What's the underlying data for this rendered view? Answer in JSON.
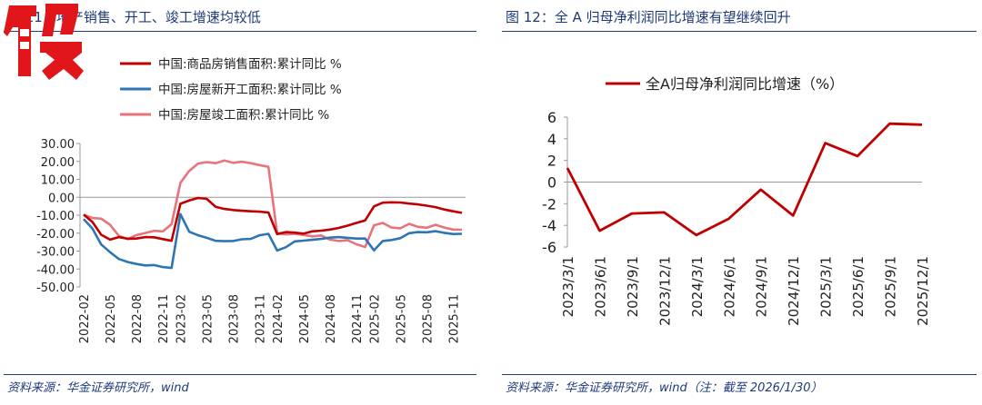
{
  "left": {
    "fig_title": "图 11：地产销售、开工、竣工增速均较低",
    "source": "资料来源：华金证券研究所，wind"
  },
  "right": {
    "fig_title": "图 12：全 A 归母净利润同比增速有望继续回升",
    "source": "资料来源：华金证券研究所，wind（注：截至 2026/1/30）"
  },
  "colors": {
    "navy": "#1f3a7a",
    "red": "#c00000",
    "blue": "#2e75b6",
    "pink": "#e8737a",
    "stamp": "#e0161b"
  },
  "chart_data": [
    {
      "type": "line",
      "title": "",
      "xlabel": "",
      "ylabel": "",
      "ylim": [
        -50,
        30
      ],
      "yticks": [
        30,
        20,
        10,
        0,
        -10,
        -20,
        -30,
        -40,
        -50
      ],
      "ytick_labels": [
        "30.00",
        "20.00",
        "10.00",
        "0.00",
        "-10.00",
        "-20.00",
        "-30.00",
        "-40.00",
        "-50.00"
      ],
      "x_tick_labels": [
        "2022-02",
        "2022-05",
        "2022-08",
        "2022-11",
        "2023-02",
        "2023-05",
        "2023-08",
        "2023-11",
        "2024-02",
        "2024-05",
        "2024-08",
        "2024-11",
        "2025-02",
        "2025-05",
        "2025-08",
        "2025-11"
      ],
      "legend_position": "top-left",
      "grid": false,
      "categories": [
        "2022-02",
        "2022-03",
        "2022-04",
        "2022-05",
        "2022-06",
        "2022-07",
        "2022-08",
        "2022-09",
        "2022-10",
        "2022-11",
        "2022-12",
        "2023-02",
        "2023-03",
        "2023-04",
        "2023-05",
        "2023-06",
        "2023-07",
        "2023-08",
        "2023-09",
        "2023-10",
        "2023-11",
        "2023-12",
        "2024-02",
        "2024-03",
        "2024-04",
        "2024-05",
        "2024-06",
        "2024-07",
        "2024-08",
        "2024-09",
        "2024-10",
        "2024-11",
        "2024-12",
        "2025-02",
        "2025-03",
        "2025-04",
        "2025-05",
        "2025-06",
        "2025-07",
        "2025-08",
        "2025-09",
        "2025-10",
        "2025-11",
        "2025-12"
      ],
      "series": [
        {
          "name": "中国:商品房销售面积:累计同比 %",
          "color": "#c00000",
          "values": [
            -9.6,
            -13.8,
            -20.9,
            -23.6,
            -22.2,
            -23.1,
            -23.0,
            -22.2,
            -22.3,
            -23.3,
            -24.3,
            -3.6,
            -1.8,
            -0.4,
            -0.9,
            -5.3,
            -6.5,
            -7.1,
            -7.5,
            -7.8,
            -8.0,
            -8.5,
            -20.5,
            -19.4,
            -19.7,
            -20.3,
            -19.0,
            -18.6,
            -18.0,
            -17.1,
            -15.8,
            -14.3,
            -12.9,
            -5.1,
            -3.0,
            -2.8,
            -2.9,
            -3.5,
            -4.0,
            -4.7,
            -5.5,
            -6.8,
            -7.8,
            -8.7
          ]
        },
        {
          "name": "中国:房屋新开工面积:累计同比 %",
          "color": "#2e75b6",
          "values": [
            -12.2,
            -17.5,
            -26.3,
            -30.6,
            -34.4,
            -36.1,
            -37.2,
            -38.0,
            -37.8,
            -38.9,
            -39.4,
            -9.4,
            -19.2,
            -21.2,
            -22.6,
            -24.3,
            -24.5,
            -24.4,
            -23.4,
            -23.2,
            -21.2,
            -20.4,
            -29.7,
            -27.8,
            -24.6,
            -24.2,
            -23.7,
            -23.2,
            -22.5,
            -22.2,
            -22.6,
            -23.0,
            -23.0,
            -29.6,
            -24.4,
            -23.8,
            -22.8,
            -20.0,
            -19.4,
            -19.5,
            -18.9,
            -19.8,
            -20.5,
            -20.4
          ]
        },
        {
          "name": "中国:房屋竣工面积:累计同比 %",
          "color": "#e8737a",
          "values": [
            -9.8,
            -11.5,
            -11.9,
            -15.3,
            -21.5,
            -23.3,
            -21.1,
            -19.9,
            -18.7,
            -19.0,
            -15.0,
            8.0,
            14.7,
            18.8,
            19.6,
            19.0,
            20.5,
            19.2,
            19.8,
            19.0,
            17.9,
            17.0,
            -20.2,
            -20.7,
            -20.4,
            -21.0,
            -21.8,
            -21.3,
            -23.6,
            -24.4,
            -23.9,
            -26.2,
            -27.7,
            -15.6,
            -14.3,
            -16.9,
            -17.3,
            -14.8,
            -16.5,
            -17.0,
            -15.3,
            -16.9,
            -18.0,
            -18.1
          ]
        }
      ]
    },
    {
      "type": "line",
      "title": "",
      "xlabel": "",
      "ylabel": "",
      "ylim": [
        -6,
        6
      ],
      "yticks": [
        6,
        4,
        2,
        0,
        -2,
        -4,
        -6
      ],
      "ytick_labels": [
        "6",
        "4",
        "2",
        "0",
        "-2",
        "-4",
        "-6"
      ],
      "legend_position": "top-center",
      "grid": false,
      "categories": [
        "2023/3/1",
        "2023/6/1",
        "2023/9/1",
        "2023/12/1",
        "2024/3/1",
        "2024/6/1",
        "2024/9/1",
        "2024/12/1",
        "2025/3/1",
        "2025/6/1",
        "2025/9/1",
        "2025/12/1"
      ],
      "series": [
        {
          "name": "全A归母净利润同比增速（%）",
          "color": "#c00000",
          "values": [
            1.3,
            -4.5,
            -2.9,
            -2.8,
            -4.9,
            -3.4,
            -0.7,
            -3.1,
            3.6,
            2.4,
            5.4,
            5.3
          ]
        }
      ]
    }
  ]
}
